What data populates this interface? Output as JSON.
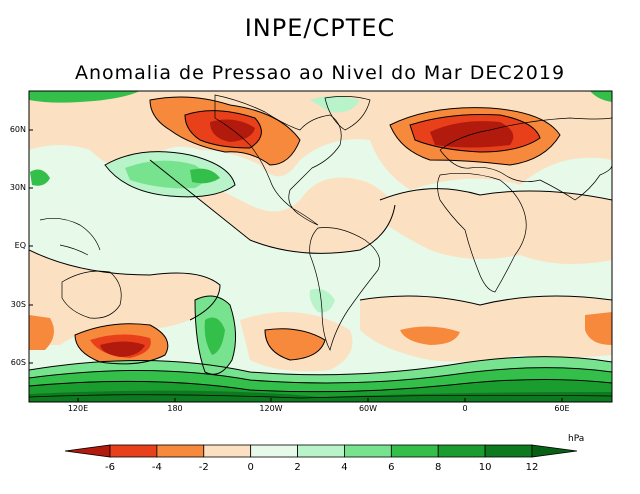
{
  "header": {
    "title": "INPE/CPTEC",
    "subtitle": "Anomalia de Pressao ao Nivel do Mar DEC2019"
  },
  "map": {
    "lat_labels": [
      "60N",
      "30N",
      "EQ",
      "30S",
      "60S"
    ],
    "lon_labels": [
      "120E",
      "180",
      "120W",
      "60W",
      "0",
      "60E"
    ]
  },
  "colorbar": {
    "unit": "hPa",
    "ticks": [
      "-6",
      "-4",
      "-2",
      "0",
      "2",
      "4",
      "6",
      "8",
      "10",
      "12"
    ],
    "colors": [
      "#b21a0e",
      "#e8401a",
      "#f7893c",
      "#fbe1c2",
      "#e7f9e9",
      "#b9f3c9",
      "#77e38f",
      "#34bf4a",
      "#1b9c2e",
      "#0d7a1f",
      "#086014"
    ]
  },
  "palette": {
    "land_line": "#000000",
    "ocean_base": "#e7f9e9"
  }
}
